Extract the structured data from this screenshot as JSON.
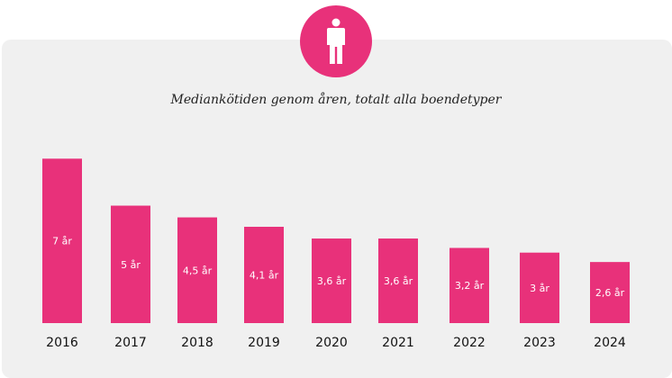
{
  "colors": {
    "accent": "#e8317a",
    "panel": "#f0f0f0"
  },
  "header": {
    "icon": "person-icon"
  },
  "chart_data": {
    "type": "bar",
    "title": "Mediankötiden genom åren, totalt alla boendetyper",
    "xlabel": "",
    "ylabel": "",
    "categories": [
      "2016",
      "2017",
      "2018",
      "2019",
      "2020",
      "2021",
      "2022",
      "2023",
      "2024"
    ],
    "values": [
      7,
      5,
      4.5,
      4.1,
      3.6,
      3.6,
      3.2,
      3,
      2.6
    ],
    "value_labels": [
      "7 år",
      "5 år",
      "4,5 år",
      "4,1 år",
      "3,6 år",
      "3,6 år",
      "3,2 år",
      "3 år",
      "2,6 år"
    ],
    "ylim": [
      0,
      7
    ],
    "grid": false,
    "legend": "none"
  }
}
